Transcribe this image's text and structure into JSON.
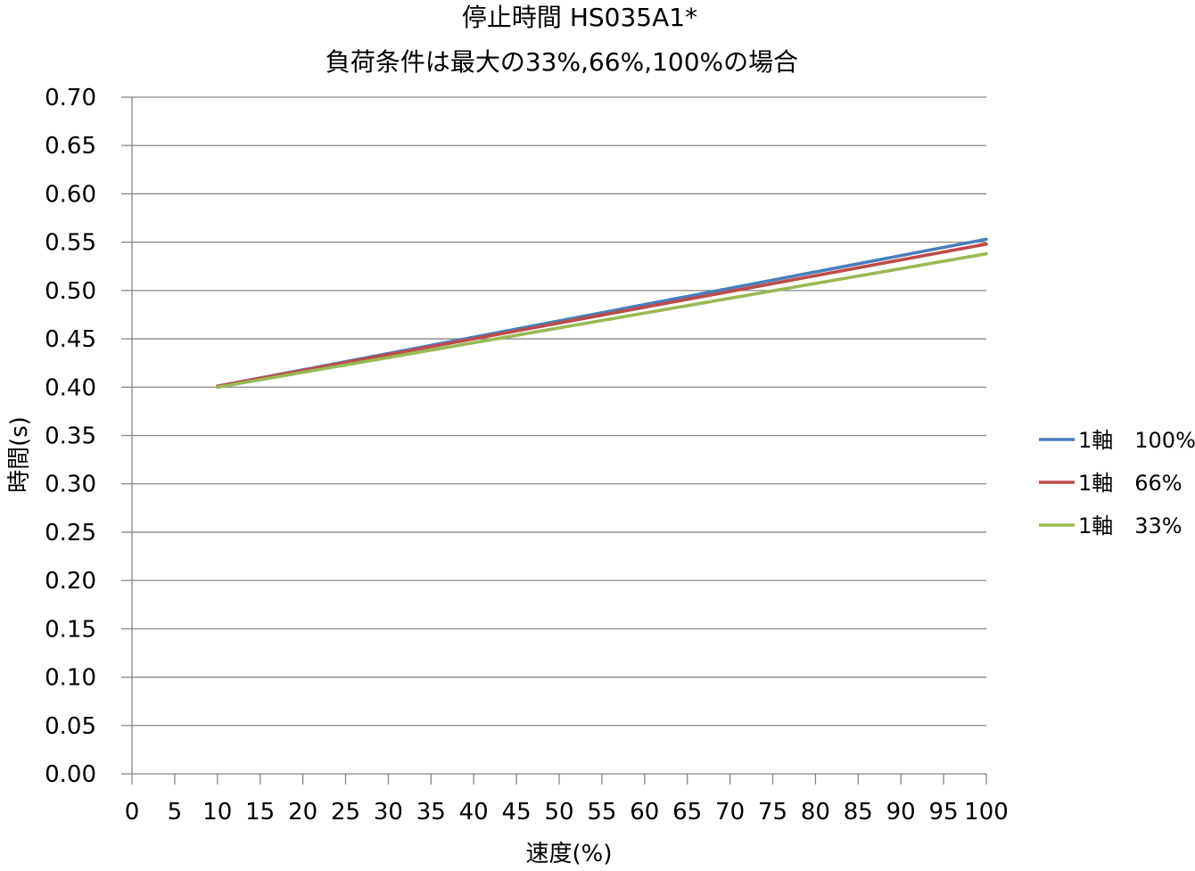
{
  "chart_data": {
    "type": "line",
    "title": [
      "停止時間 HS035A1*",
      "負荷条件は最大の33%,66%,100%の場合"
    ],
    "xlabel": "速度(%)",
    "ylabel": "時間(s)",
    "xlim": [
      0,
      100
    ],
    "ylim": [
      0,
      0.7
    ],
    "x_ticks": [
      0,
      5,
      10,
      15,
      20,
      25,
      30,
      35,
      40,
      45,
      50,
      55,
      60,
      65,
      70,
      75,
      80,
      85,
      90,
      95,
      100
    ],
    "x_tick_labels": [
      "0",
      "5",
      "10",
      "15",
      "20",
      "25",
      "30",
      "35",
      "40",
      "45",
      "50",
      "55",
      "60",
      "65",
      "70",
      "75",
      "80",
      "85",
      "90",
      "95",
      "100"
    ],
    "y_ticks": [
      0,
      0.05,
      0.1,
      0.15,
      0.2,
      0.25,
      0.3,
      0.35,
      0.4,
      0.45,
      0.5,
      0.55,
      0.6,
      0.65,
      0.7
    ],
    "y_tick_labels": [
      "0.00",
      "0.05",
      "0.10",
      "0.15",
      "0.20",
      "0.25",
      "0.30",
      "0.35",
      "0.40",
      "0.45",
      "0.50",
      "0.55",
      "0.60",
      "0.65",
      "0.70"
    ],
    "grid": "horizontal",
    "legend_position": "right",
    "series": [
      {
        "name": "1軸　100%",
        "color": "#4a7ebb",
        "x": [
          10,
          100
        ],
        "y": [
          0.401,
          0.553
        ]
      },
      {
        "name": "1軸　66%",
        "color": "#be4b48",
        "x": [
          10,
          100
        ],
        "y": [
          0.401,
          0.548
        ]
      },
      {
        "name": "1軸　33%",
        "color": "#98b954",
        "x": [
          10,
          100
        ],
        "y": [
          0.4,
          0.538
        ]
      }
    ]
  }
}
